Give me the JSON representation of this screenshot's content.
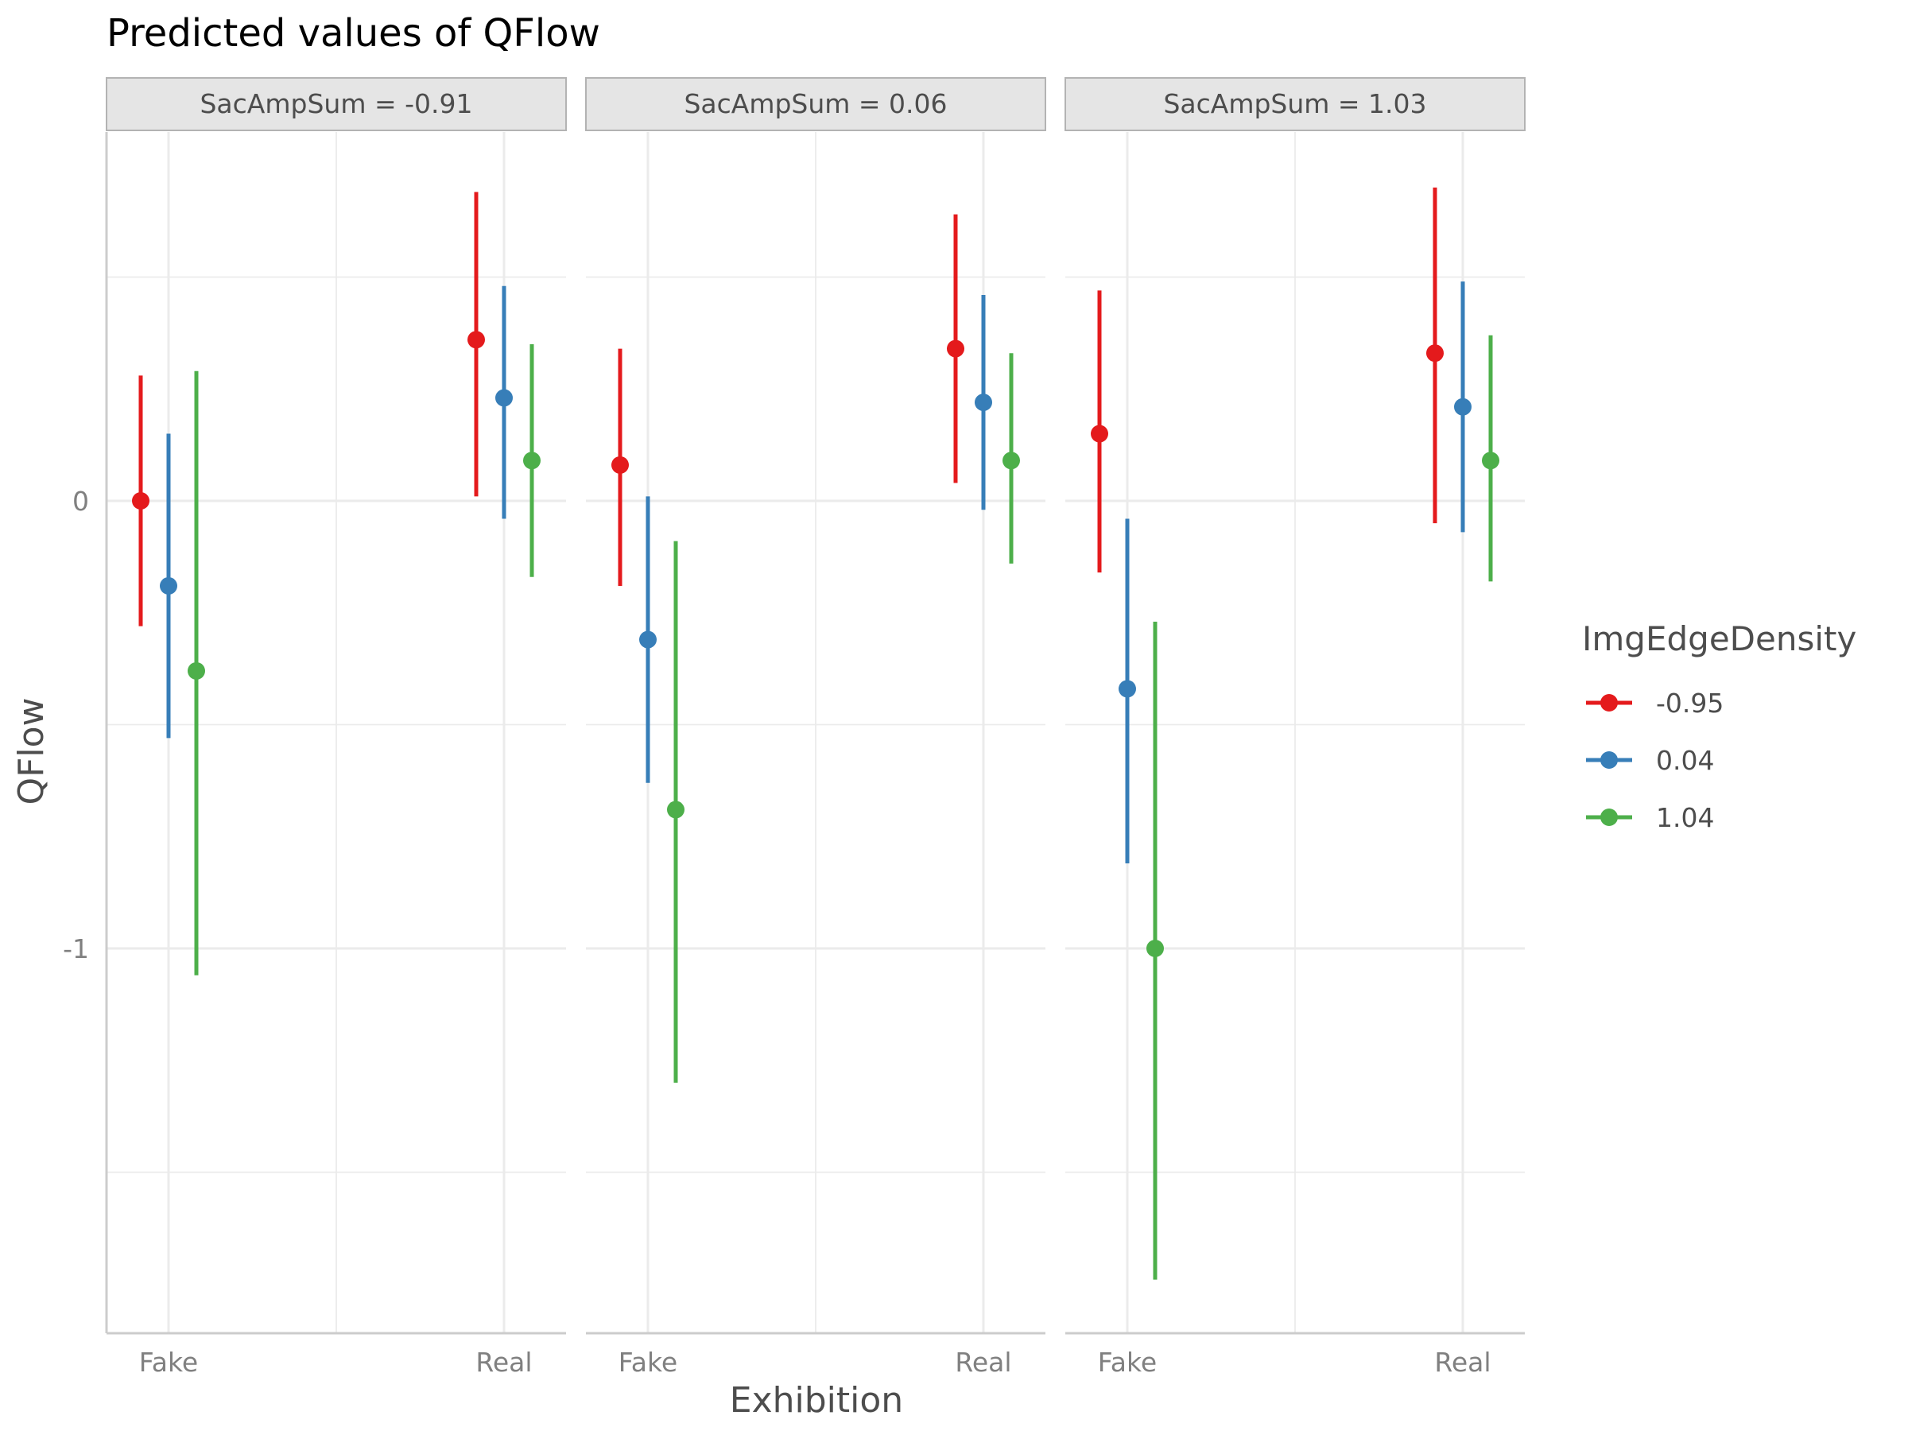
{
  "chart_data": {
    "type": "pointrange",
    "title": "Predicted values of QFlow",
    "xlabel": "Exhibition",
    "ylabel": "QFlow",
    "categories": [
      "Fake",
      "Real"
    ],
    "y_ticks": [
      0,
      -1
    ],
    "y_tick_labels": [
      "0",
      "-1"
    ],
    "ylim": [
      -1.86,
      0.82
    ],
    "grid": true,
    "facet_variable": "SacAmpSum",
    "facets": [
      {
        "label": "SacAmpSum = -0.91",
        "series": [
          {
            "name": "-0.95",
            "points": [
              {
                "x": "Fake",
                "y": 0.0,
                "lo": -0.28,
                "hi": 0.28
              },
              {
                "x": "Real",
                "y": 0.36,
                "lo": 0.01,
                "hi": 0.69
              }
            ]
          },
          {
            "name": "0.04",
            "points": [
              {
                "x": "Fake",
                "y": -0.19,
                "lo": -0.53,
                "hi": 0.15
              },
              {
                "x": "Real",
                "y": 0.23,
                "lo": -0.04,
                "hi": 0.48
              }
            ]
          },
          {
            "name": "1.04",
            "points": [
              {
                "x": "Fake",
                "y": -0.38,
                "lo": -1.06,
                "hi": 0.29
              },
              {
                "x": "Real",
                "y": 0.09,
                "lo": -0.17,
                "hi": 0.35
              }
            ]
          }
        ]
      },
      {
        "label": "SacAmpSum = 0.06",
        "series": [
          {
            "name": "-0.95",
            "points": [
              {
                "x": "Fake",
                "y": 0.08,
                "lo": -0.19,
                "hi": 0.34
              },
              {
                "x": "Real",
                "y": 0.34,
                "lo": 0.04,
                "hi": 0.64
              }
            ]
          },
          {
            "name": "0.04",
            "points": [
              {
                "x": "Fake",
                "y": -0.31,
                "lo": -0.63,
                "hi": 0.01
              },
              {
                "x": "Real",
                "y": 0.22,
                "lo": -0.02,
                "hi": 0.46
              }
            ]
          },
          {
            "name": "1.04",
            "points": [
              {
                "x": "Fake",
                "y": -0.69,
                "lo": -1.3,
                "hi": -0.09
              },
              {
                "x": "Real",
                "y": 0.09,
                "lo": -0.14,
                "hi": 0.33
              }
            ]
          }
        ]
      },
      {
        "label": "SacAmpSum = 1.03",
        "series": [
          {
            "name": "-0.95",
            "points": [
              {
                "x": "Fake",
                "y": 0.15,
                "lo": -0.16,
                "hi": 0.47
              },
              {
                "x": "Real",
                "y": 0.33,
                "lo": -0.05,
                "hi": 0.7
              }
            ]
          },
          {
            "name": "0.04",
            "points": [
              {
                "x": "Fake",
                "y": -0.42,
                "lo": -0.81,
                "hi": -0.04
              },
              {
                "x": "Real",
                "y": 0.21,
                "lo": -0.07,
                "hi": 0.49
              }
            ]
          },
          {
            "name": "1.04",
            "points": [
              {
                "x": "Fake",
                "y": -1.0,
                "lo": -1.74,
                "hi": -0.27
              },
              {
                "x": "Real",
                "y": 0.09,
                "lo": -0.18,
                "hi": 0.37
              }
            ]
          }
        ]
      }
    ],
    "legend": {
      "title": "ImgEdgeDensity",
      "position": "right",
      "items": [
        {
          "label": "-0.95",
          "color": "#e41a1c"
        },
        {
          "label": "0.04",
          "color": "#377eb8"
        },
        {
          "label": "1.04",
          "color": "#4daf4a"
        }
      ]
    }
  }
}
